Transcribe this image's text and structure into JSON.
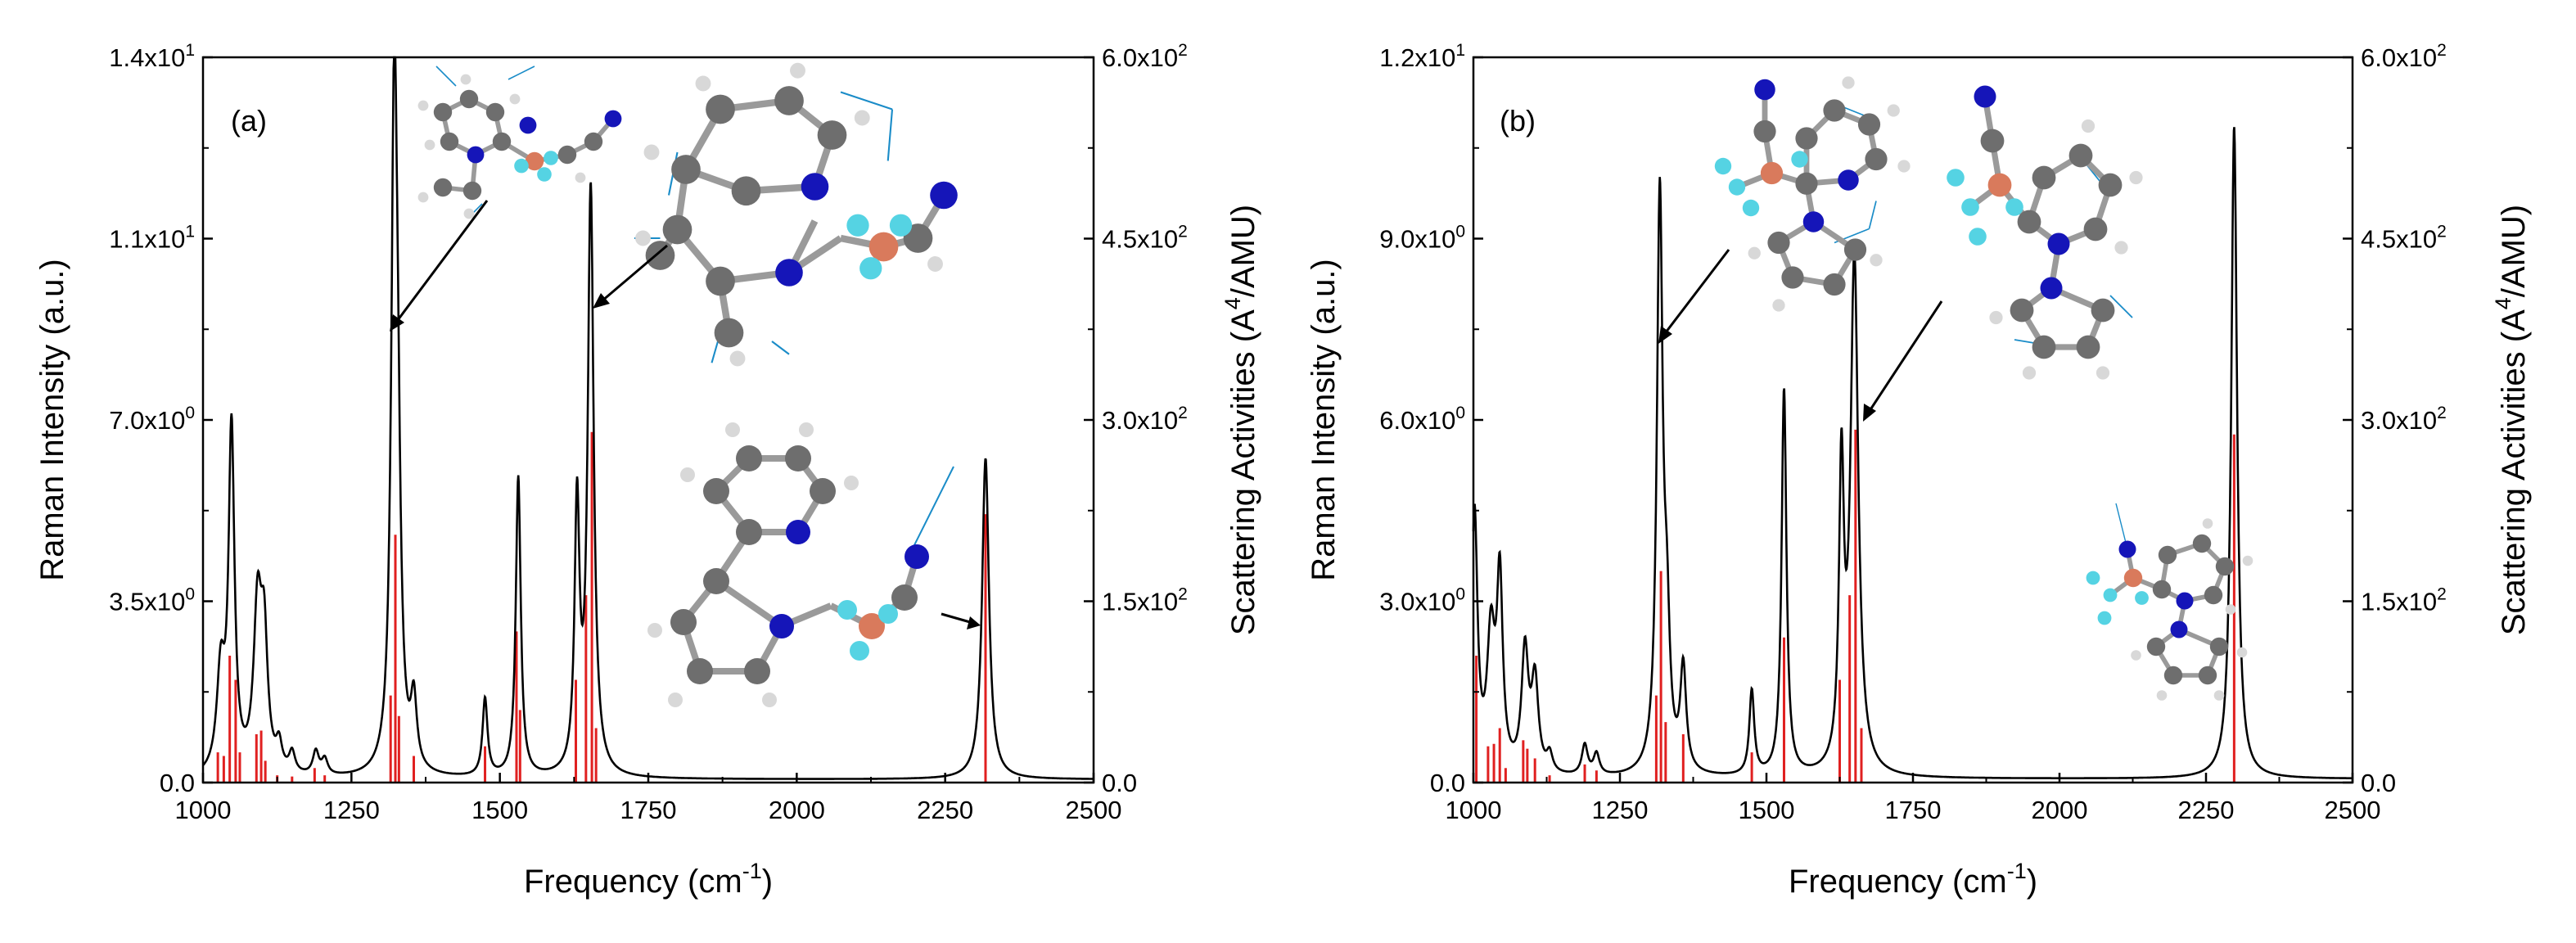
{
  "colors": {
    "spectrum": "#000000",
    "sticks": "#e02020",
    "carbon": "#6e6e6e",
    "hydrogen": "#d8d8d8",
    "nitrogen": "#1515b8",
    "boron": "#d97a5c",
    "fluorine": "#55d3e3",
    "bond": "#9a9a9a",
    "vector": "#1a8cc8"
  },
  "chart_data": [
    {
      "type": "line",
      "panel_label": "(a)",
      "xlabel_main": "Frequency (cm",
      "xlabel_sup": "-1",
      "xlabel_end": ")",
      "ylabel": "Raman Intensity (a.u.)",
      "y2label_main": "Scattering Activities (A",
      "y2label_sup": "4",
      "y2label_end": "/AMU)",
      "xlim": [
        1000,
        2500
      ],
      "ylim": [
        0,
        14
      ],
      "y2lim": [
        0,
        600
      ],
      "xticks": [
        "1000",
        "1250",
        "1500",
        "1750",
        "2000",
        "2250",
        "2500"
      ],
      "yticks": [
        {
          "base": "0.0",
          "exp": ""
        },
        {
          "base": "3.5x10",
          "exp": "0"
        },
        {
          "base": "7.0x10",
          "exp": "0"
        },
        {
          "base": "1.1x10",
          "exp": "1"
        },
        {
          "base": "1.4x10",
          "exp": "1"
        }
      ],
      "y2ticks": [
        {
          "base": "0.0",
          "exp": ""
        },
        {
          "base": "1.5x10",
          "exp": "2"
        },
        {
          "base": "3.0x10",
          "exp": "2"
        },
        {
          "base": "4.5x10",
          "exp": "2"
        },
        {
          "base": "6.0x10",
          "exp": "2"
        }
      ],
      "peaks": [
        {
          "x": 1030,
          "h": 1.9,
          "w": 8
        },
        {
          "x": 1048,
          "h": 6.6,
          "w": 6
        },
        {
          "x": 1092,
          "h": 3.1,
          "w": 8
        },
        {
          "x": 1103,
          "h": 2.4,
          "w": 7
        },
        {
          "x": 1128,
          "h": 0.5,
          "w": 6
        },
        {
          "x": 1150,
          "h": 0.4,
          "w": 6
        },
        {
          "x": 1190,
          "h": 0.45,
          "w": 6
        },
        {
          "x": 1205,
          "h": 0.3,
          "w": 6
        },
        {
          "x": 1322,
          "h": 12.3,
          "w": 6
        },
        {
          "x": 1328,
          "h": 4.0,
          "w": 6
        },
        {
          "x": 1355,
          "h": 1.3,
          "w": 6
        },
        {
          "x": 1475,
          "h": 1.5,
          "w": 5
        },
        {
          "x": 1531,
          "h": 5.8,
          "w": 5
        },
        {
          "x": 1630,
          "h": 5.1,
          "w": 5
        },
        {
          "x": 1653,
          "h": 11.3,
          "w": 6
        },
        {
          "x": 2318,
          "h": 6.2,
          "w": 7
        }
      ],
      "sticks": [
        {
          "x": 1025,
          "act": 25
        },
        {
          "x": 1035,
          "act": 22
        },
        {
          "x": 1045,
          "act": 105
        },
        {
          "x": 1055,
          "act": 85
        },
        {
          "x": 1062,
          "act": 25
        },
        {
          "x": 1090,
          "act": 40
        },
        {
          "x": 1098,
          "act": 43
        },
        {
          "x": 1105,
          "act": 18
        },
        {
          "x": 1125,
          "act": 6
        },
        {
          "x": 1150,
          "act": 5
        },
        {
          "x": 1188,
          "act": 12
        },
        {
          "x": 1205,
          "act": 6
        },
        {
          "x": 1316,
          "act": 72
        },
        {
          "x": 1324,
          "act": 205
        },
        {
          "x": 1330,
          "act": 55
        },
        {
          "x": 1355,
          "act": 22
        },
        {
          "x": 1475,
          "act": 30
        },
        {
          "x": 1528,
          "act": 125
        },
        {
          "x": 1534,
          "act": 60
        },
        {
          "x": 1628,
          "act": 85
        },
        {
          "x": 1645,
          "act": 155
        },
        {
          "x": 1655,
          "act": 290
        },
        {
          "x": 1662,
          "act": 45
        },
        {
          "x": 2318,
          "act": 222
        }
      ]
    },
    {
      "type": "line",
      "panel_label": "(b)",
      "xlabel_main": "Frequency (cm",
      "xlabel_sup": "-1",
      "xlabel_end": ")",
      "ylabel": "Raman Intensity (a.u.)",
      "y2label_main": "Scattering Activities (A",
      "y2label_sup": "4",
      "y2label_end": "/AMU)",
      "xlim": [
        1000,
        2500
      ],
      "ylim": [
        0,
        12
      ],
      "y2lim": [
        0,
        600
      ],
      "xticks": [
        "1000",
        "1250",
        "1500",
        "1750",
        "2000",
        "2250",
        "2500"
      ],
      "yticks": [
        {
          "base": "0.0",
          "exp": ""
        },
        {
          "base": "3.0x10",
          "exp": "0"
        },
        {
          "base": "6.0x10",
          "exp": "0"
        },
        {
          "base": "9.0x10",
          "exp": "0"
        },
        {
          "base": "1.2x10",
          "exp": "1"
        }
      ],
      "y2ticks": [
        {
          "base": "0.0",
          "exp": ""
        },
        {
          "base": "1.5x10",
          "exp": "2"
        },
        {
          "base": "3.0x10",
          "exp": "2"
        },
        {
          "base": "4.5x10",
          "exp": "2"
        },
        {
          "base": "6.0x10",
          "exp": "2"
        }
      ],
      "peaks": [
        {
          "x": 1002,
          "h": 4.3,
          "w": 6
        },
        {
          "x": 1030,
          "h": 2.2,
          "w": 8
        },
        {
          "x": 1045,
          "h": 3.1,
          "w": 6
        },
        {
          "x": 1088,
          "h": 2.0,
          "w": 7
        },
        {
          "x": 1105,
          "h": 1.5,
          "w": 7
        },
        {
          "x": 1130,
          "h": 0.3,
          "w": 6
        },
        {
          "x": 1190,
          "h": 0.5,
          "w": 6
        },
        {
          "x": 1210,
          "h": 0.35,
          "w": 6
        },
        {
          "x": 1318,
          "h": 9.5,
          "w": 6
        },
        {
          "x": 1330,
          "h": 2.0,
          "w": 6
        },
        {
          "x": 1358,
          "h": 1.7,
          "w": 6
        },
        {
          "x": 1475,
          "h": 1.4,
          "w": 5
        },
        {
          "x": 1530,
          "h": 6.4,
          "w": 5
        },
        {
          "x": 1628,
          "h": 4.8,
          "w": 5
        },
        {
          "x": 1650,
          "h": 8.5,
          "w": 8
        },
        {
          "x": 2298,
          "h": 10.8,
          "w": 6
        }
      ],
      "sticks": [
        {
          "x": 1005,
          "act": 105
        },
        {
          "x": 1025,
          "act": 30
        },
        {
          "x": 1035,
          "act": 32
        },
        {
          "x": 1045,
          "act": 45
        },
        {
          "x": 1055,
          "act": 12
        },
        {
          "x": 1085,
          "act": 35
        },
        {
          "x": 1092,
          "act": 28
        },
        {
          "x": 1105,
          "act": 20
        },
        {
          "x": 1130,
          "act": 6
        },
        {
          "x": 1190,
          "act": 15
        },
        {
          "x": 1210,
          "act": 10
        },
        {
          "x": 1312,
          "act": 72
        },
        {
          "x": 1320,
          "act": 175
        },
        {
          "x": 1328,
          "act": 50
        },
        {
          "x": 1358,
          "act": 40
        },
        {
          "x": 1475,
          "act": 25
        },
        {
          "x": 1530,
          "act": 120
        },
        {
          "x": 1625,
          "act": 85
        },
        {
          "x": 1642,
          "act": 155
        },
        {
          "x": 1652,
          "act": 292
        },
        {
          "x": 1662,
          "act": 45
        },
        {
          "x": 2298,
          "act": 288
        }
      ]
    }
  ]
}
